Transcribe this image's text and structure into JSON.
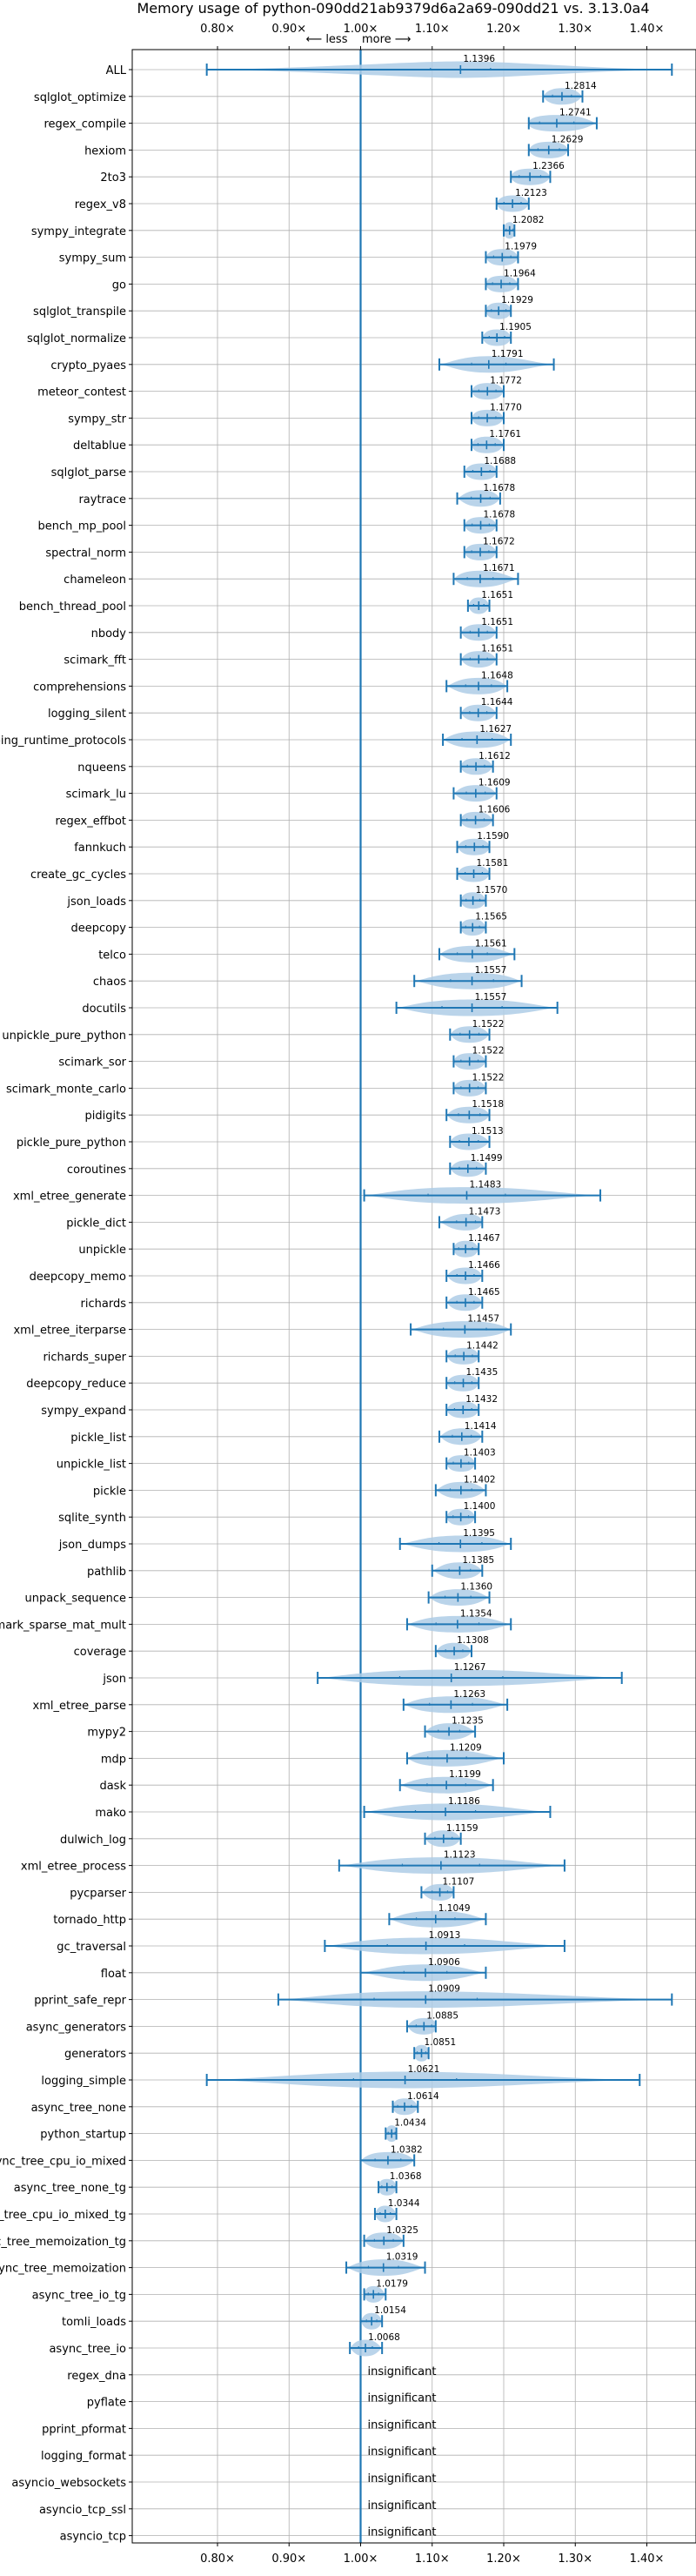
{
  "chart_data": {
    "type": "violin",
    "title": "Memory usage of python-090dd21ab9379d6a2a69-090dd21 vs. 3.13.0a4",
    "xlim": [
      0.76,
      1.44
    ],
    "xticks": [
      0.8,
      0.9,
      1.0,
      1.1,
      1.2,
      1.3,
      1.4
    ],
    "xtick_labels": [
      "0.80×",
      "0.90×",
      "1.00×",
      "1.10×",
      "1.20×",
      "1.30×",
      "1.40×"
    ],
    "direction_label": "⟵ less    more ⟶",
    "reference_line": 1.0,
    "grid": true,
    "insignificant_label": "insignificant",
    "benchmarks": [
      {
        "name": "ALL",
        "value": 1.1396,
        "label": "1.1396",
        "min": 0.785,
        "max": 1.435,
        "spread": 0.07
      },
      {
        "name": "sqlglot_optimize",
        "value": 1.2814,
        "label": "1.2814",
        "min": 1.255,
        "max": 1.31,
        "spread": 0.022
      },
      {
        "name": "regex_compile",
        "value": 1.2741,
        "label": "1.2741",
        "min": 1.235,
        "max": 1.33,
        "spread": 0.04
      },
      {
        "name": "hexiom",
        "value": 1.2629,
        "label": "1.2629",
        "min": 1.235,
        "max": 1.29,
        "spread": 0.025
      },
      {
        "name": "2to3",
        "value": 1.2366,
        "label": "1.2366",
        "min": 1.21,
        "max": 1.265,
        "spread": 0.025
      },
      {
        "name": "regex_v8",
        "value": 1.2123,
        "label": "1.2123",
        "min": 1.19,
        "max": 1.235,
        "spread": 0.02
      },
      {
        "name": "sympy_integrate",
        "value": 1.2082,
        "label": "1.2082",
        "min": 1.2,
        "max": 1.215,
        "spread": 0.008
      },
      {
        "name": "sympy_sum",
        "value": 1.1979,
        "label": "1.1979",
        "min": 1.175,
        "max": 1.22,
        "spread": 0.02
      },
      {
        "name": "go",
        "value": 1.1964,
        "label": "1.1964",
        "min": 1.175,
        "max": 1.22,
        "spread": 0.02
      },
      {
        "name": "sqlglot_transpile",
        "value": 1.1929,
        "label": "1.1929",
        "min": 1.175,
        "max": 1.21,
        "spread": 0.017
      },
      {
        "name": "sqlglot_normalize",
        "value": 1.1905,
        "label": "1.1905",
        "min": 1.17,
        "max": 1.21,
        "spread": 0.018
      },
      {
        "name": "crypto_pyaes",
        "value": 1.1791,
        "label": "1.1791",
        "min": 1.11,
        "max": 1.27,
        "spread": 0.04
      },
      {
        "name": "meteor_contest",
        "value": 1.1772,
        "label": "1.1772",
        "min": 1.155,
        "max": 1.2,
        "spread": 0.02
      },
      {
        "name": "sympy_str",
        "value": 1.177,
        "label": "1.1770",
        "min": 1.155,
        "max": 1.2,
        "spread": 0.02
      },
      {
        "name": "deltablue",
        "value": 1.1761,
        "label": "1.1761",
        "min": 1.155,
        "max": 1.2,
        "spread": 0.02
      },
      {
        "name": "sqlglot_parse",
        "value": 1.1688,
        "label": "1.1688",
        "min": 1.145,
        "max": 1.19,
        "spread": 0.02
      },
      {
        "name": "raytrace",
        "value": 1.1678,
        "label": "1.1678",
        "min": 1.135,
        "max": 1.195,
        "spread": 0.022
      },
      {
        "name": "bench_mp_pool",
        "value": 1.1678,
        "label": "1.1678",
        "min": 1.145,
        "max": 1.19,
        "spread": 0.02
      },
      {
        "name": "spectral_norm",
        "value": 1.1672,
        "label": "1.1672",
        "min": 1.145,
        "max": 1.19,
        "spread": 0.02
      },
      {
        "name": "chameleon",
        "value": 1.1671,
        "label": "1.1671",
        "min": 1.13,
        "max": 1.22,
        "spread": 0.03
      },
      {
        "name": "bench_thread_pool",
        "value": 1.1651,
        "label": "1.1651",
        "min": 1.15,
        "max": 1.18,
        "spread": 0.012
      },
      {
        "name": "nbody",
        "value": 1.1651,
        "label": "1.1651",
        "min": 1.14,
        "max": 1.19,
        "spread": 0.02
      },
      {
        "name": "scimark_fft",
        "value": 1.1651,
        "label": "1.1651",
        "min": 1.14,
        "max": 1.19,
        "spread": 0.02
      },
      {
        "name": "comprehensions",
        "value": 1.1648,
        "label": "1.1648",
        "min": 1.12,
        "max": 1.205,
        "spread": 0.03
      },
      {
        "name": "logging_silent",
        "value": 1.1644,
        "label": "1.1644",
        "min": 1.14,
        "max": 1.19,
        "spread": 0.02
      },
      {
        "name": "typing_runtime_protocols",
        "value": 1.1627,
        "label": "1.1627",
        "min": 1.115,
        "max": 1.21,
        "spread": 0.035
      },
      {
        "name": "nqueens",
        "value": 1.1612,
        "label": "1.1612",
        "min": 1.14,
        "max": 1.185,
        "spread": 0.02
      },
      {
        "name": "scimark_lu",
        "value": 1.1609,
        "label": "1.1609",
        "min": 1.13,
        "max": 1.19,
        "spread": 0.022
      },
      {
        "name": "regex_effbot",
        "value": 1.1606,
        "label": "1.1606",
        "min": 1.14,
        "max": 1.185,
        "spread": 0.02
      },
      {
        "name": "fannkuch",
        "value": 1.159,
        "label": "1.1590",
        "min": 1.135,
        "max": 1.18,
        "spread": 0.02
      },
      {
        "name": "create_gc_cycles",
        "value": 1.1581,
        "label": "1.1581",
        "min": 1.135,
        "max": 1.18,
        "spread": 0.02
      },
      {
        "name": "json_loads",
        "value": 1.157,
        "label": "1.1570",
        "min": 1.14,
        "max": 1.175,
        "spread": 0.016
      },
      {
        "name": "deepcopy",
        "value": 1.1565,
        "label": "1.1565",
        "min": 1.14,
        "max": 1.175,
        "spread": 0.016
      },
      {
        "name": "telco",
        "value": 1.1561,
        "label": "1.1561",
        "min": 1.11,
        "max": 1.215,
        "spread": 0.035
      },
      {
        "name": "chaos",
        "value": 1.1557,
        "label": "1.1557",
        "min": 1.075,
        "max": 1.225,
        "spread": 0.05
      },
      {
        "name": "docutils",
        "value": 1.1557,
        "label": "1.1557",
        "min": 1.05,
        "max": 1.275,
        "spread": 0.07
      },
      {
        "name": "unpickle_pure_python",
        "value": 1.1522,
        "label": "1.1522",
        "min": 1.125,
        "max": 1.18,
        "spread": 0.022
      },
      {
        "name": "scimark_sor",
        "value": 1.1522,
        "label": "1.1522",
        "min": 1.13,
        "max": 1.175,
        "spread": 0.02
      },
      {
        "name": "scimark_monte_carlo",
        "value": 1.1522,
        "label": "1.1522",
        "min": 1.13,
        "max": 1.175,
        "spread": 0.02
      },
      {
        "name": "pidigits",
        "value": 1.1518,
        "label": "1.1518",
        "min": 1.12,
        "max": 1.18,
        "spread": 0.025
      },
      {
        "name": "pickle_pure_python",
        "value": 1.1513,
        "label": "1.1513",
        "min": 1.125,
        "max": 1.18,
        "spread": 0.022
      },
      {
        "name": "coroutines",
        "value": 1.1499,
        "label": "1.1499",
        "min": 1.125,
        "max": 1.175,
        "spread": 0.02
      },
      {
        "name": "xml_etree_generate",
        "value": 1.1483,
        "label": "1.1483",
        "min": 1.005,
        "max": 1.335,
        "spread": 0.09
      },
      {
        "name": "pickle_dict",
        "value": 1.1473,
        "label": "1.1473",
        "min": 1.11,
        "max": 1.17,
        "spread": 0.022
      },
      {
        "name": "unpickle",
        "value": 1.1467,
        "label": "1.1467",
        "min": 1.13,
        "max": 1.165,
        "spread": 0.016
      },
      {
        "name": "deepcopy_memo",
        "value": 1.1466,
        "label": "1.1466",
        "min": 1.12,
        "max": 1.17,
        "spread": 0.02
      },
      {
        "name": "richards",
        "value": 1.1465,
        "label": "1.1465",
        "min": 1.12,
        "max": 1.17,
        "spread": 0.02
      },
      {
        "name": "xml_etree_iterparse",
        "value": 1.1457,
        "label": "1.1457",
        "min": 1.07,
        "max": 1.21,
        "spread": 0.05
      },
      {
        "name": "richards_super",
        "value": 1.1442,
        "label": "1.1442",
        "min": 1.12,
        "max": 1.165,
        "spread": 0.02
      },
      {
        "name": "deepcopy_reduce",
        "value": 1.1435,
        "label": "1.1435",
        "min": 1.12,
        "max": 1.165,
        "spread": 0.02
      },
      {
        "name": "sympy_expand",
        "value": 1.1432,
        "label": "1.1432",
        "min": 1.12,
        "max": 1.165,
        "spread": 0.02
      },
      {
        "name": "pickle_list",
        "value": 1.1414,
        "label": "1.1414",
        "min": 1.11,
        "max": 1.17,
        "spread": 0.022
      },
      {
        "name": "unpickle_list",
        "value": 1.1403,
        "label": "1.1403",
        "min": 1.12,
        "max": 1.16,
        "spread": 0.018
      },
      {
        "name": "pickle",
        "value": 1.1402,
        "label": "1.1402",
        "min": 1.105,
        "max": 1.175,
        "spread": 0.025
      },
      {
        "name": "sqlite_synth",
        "value": 1.14,
        "label": "1.1400",
        "min": 1.12,
        "max": 1.16,
        "spread": 0.018
      },
      {
        "name": "json_dumps",
        "value": 1.1395,
        "label": "1.1395",
        "min": 1.055,
        "max": 1.21,
        "spread": 0.05
      },
      {
        "name": "pathlib",
        "value": 1.1385,
        "label": "1.1385",
        "min": 1.1,
        "max": 1.17,
        "spread": 0.025
      },
      {
        "name": "unpack_sequence",
        "value": 1.136,
        "label": "1.1360",
        "min": 1.095,
        "max": 1.18,
        "spread": 0.03
      },
      {
        "name": "scimark_sparse_mat_mult",
        "value": 1.1354,
        "label": "1.1354",
        "min": 1.065,
        "max": 1.21,
        "spread": 0.05
      },
      {
        "name": "coverage",
        "value": 1.1308,
        "label": "1.1308",
        "min": 1.105,
        "max": 1.155,
        "spread": 0.02
      },
      {
        "name": "json",
        "value": 1.1267,
        "label": "1.1267",
        "min": 0.94,
        "max": 1.365,
        "spread": 0.12
      },
      {
        "name": "xml_etree_parse",
        "value": 1.1263,
        "label": "1.1263",
        "min": 1.06,
        "max": 1.205,
        "spread": 0.05
      },
      {
        "name": "mypy2",
        "value": 1.1235,
        "label": "1.1235",
        "min": 1.09,
        "max": 1.16,
        "spread": 0.025
      },
      {
        "name": "mdp",
        "value": 1.1209,
        "label": "1.1209",
        "min": 1.065,
        "max": 1.2,
        "spread": 0.045
      },
      {
        "name": "dask",
        "value": 1.1199,
        "label": "1.1199",
        "min": 1.055,
        "max": 1.185,
        "spread": 0.045
      },
      {
        "name": "mako",
        "value": 1.1186,
        "label": "1.1186",
        "min": 1.005,
        "max": 1.265,
        "spread": 0.07
      },
      {
        "name": "dulwich_log",
        "value": 1.1159,
        "label": "1.1159",
        "min": 1.09,
        "max": 1.14,
        "spread": 0.02
      },
      {
        "name": "xml_etree_process",
        "value": 1.1123,
        "label": "1.1123",
        "min": 0.97,
        "max": 1.285,
        "spread": 0.09
      },
      {
        "name": "pycparser",
        "value": 1.1107,
        "label": "1.1107",
        "min": 1.085,
        "max": 1.13,
        "spread": 0.018
      },
      {
        "name": "tornado_http",
        "value": 1.1049,
        "label": "1.1049",
        "min": 1.04,
        "max": 1.175,
        "spread": 0.045
      },
      {
        "name": "gc_traversal",
        "value": 1.0913,
        "label": "1.0913",
        "min": 0.95,
        "max": 1.285,
        "spread": 0.09
      },
      {
        "name": "float",
        "value": 1.0906,
        "label": "1.0906",
        "min": 1.0,
        "max": 1.175,
        "spread": 0.05
      },
      {
        "name": "pprint_safe_repr",
        "value": 1.0909,
        "label": "1.0909",
        "min": 0.885,
        "max": 1.435,
        "spread": 0.12
      },
      {
        "name": "async_generators",
        "value": 1.0885,
        "label": "1.0885",
        "min": 1.065,
        "max": 1.105,
        "spread": 0.018
      },
      {
        "name": "generators",
        "value": 1.0851,
        "label": "1.0851",
        "min": 1.075,
        "max": 1.095,
        "spread": 0.01
      },
      {
        "name": "logging_simple",
        "value": 1.0621,
        "label": "1.0621",
        "min": 0.785,
        "max": 1.39,
        "spread": 0.12
      },
      {
        "name": "async_tree_none",
        "value": 1.0614,
        "label": "1.0614",
        "min": 1.045,
        "max": 1.08,
        "spread": 0.016
      },
      {
        "name": "python_startup",
        "value": 1.0434,
        "label": "1.0434",
        "min": 1.035,
        "max": 1.05,
        "spread": 0.008
      },
      {
        "name": "async_tree_cpu_io_mixed",
        "value": 1.0382,
        "label": "1.0382",
        "min": 1.0,
        "max": 1.075,
        "spread": 0.03
      },
      {
        "name": "async_tree_none_tg",
        "value": 1.0368,
        "label": "1.0368",
        "min": 1.025,
        "max": 1.05,
        "spread": 0.012
      },
      {
        "name": "async_tree_cpu_io_mixed_tg",
        "value": 1.0344,
        "label": "1.0344",
        "min": 1.02,
        "max": 1.05,
        "spread": 0.012
      },
      {
        "name": "async_tree_memoization_tg",
        "value": 1.0325,
        "label": "1.0325",
        "min": 1.005,
        "max": 1.06,
        "spread": 0.022
      },
      {
        "name": "async_tree_memoization",
        "value": 1.0319,
        "label": "1.0319",
        "min": 0.98,
        "max": 1.09,
        "spread": 0.035
      },
      {
        "name": "async_tree_io_tg",
        "value": 1.0179,
        "label": "1.0179",
        "min": 1.005,
        "max": 1.035,
        "spread": 0.012
      },
      {
        "name": "tomli_loads",
        "value": 1.0154,
        "label": "1.0154",
        "min": 1.0,
        "max": 1.03,
        "spread": 0.012
      },
      {
        "name": "async_tree_io",
        "value": 1.0068,
        "label": "1.0068",
        "min": 0.985,
        "max": 1.03,
        "spread": 0.016
      },
      {
        "name": "regex_dna",
        "value": null,
        "label": "insignificant"
      },
      {
        "name": "pyflate",
        "value": null,
        "label": "insignificant"
      },
      {
        "name": "pprint_pformat",
        "value": null,
        "label": "insignificant"
      },
      {
        "name": "logging_format",
        "value": null,
        "label": "insignificant"
      },
      {
        "name": "asyncio_websockets",
        "value": null,
        "label": "insignificant"
      },
      {
        "name": "asyncio_tcp_ssl",
        "value": null,
        "label": "insignificant"
      },
      {
        "name": "asyncio_tcp",
        "value": null,
        "label": "insignificant"
      }
    ],
    "colors": {
      "violin_fill": "#aecde6",
      "line": "#1f77b4",
      "grid": "#b0b0b0",
      "axis": "#000000",
      "text": "#000000"
    }
  }
}
